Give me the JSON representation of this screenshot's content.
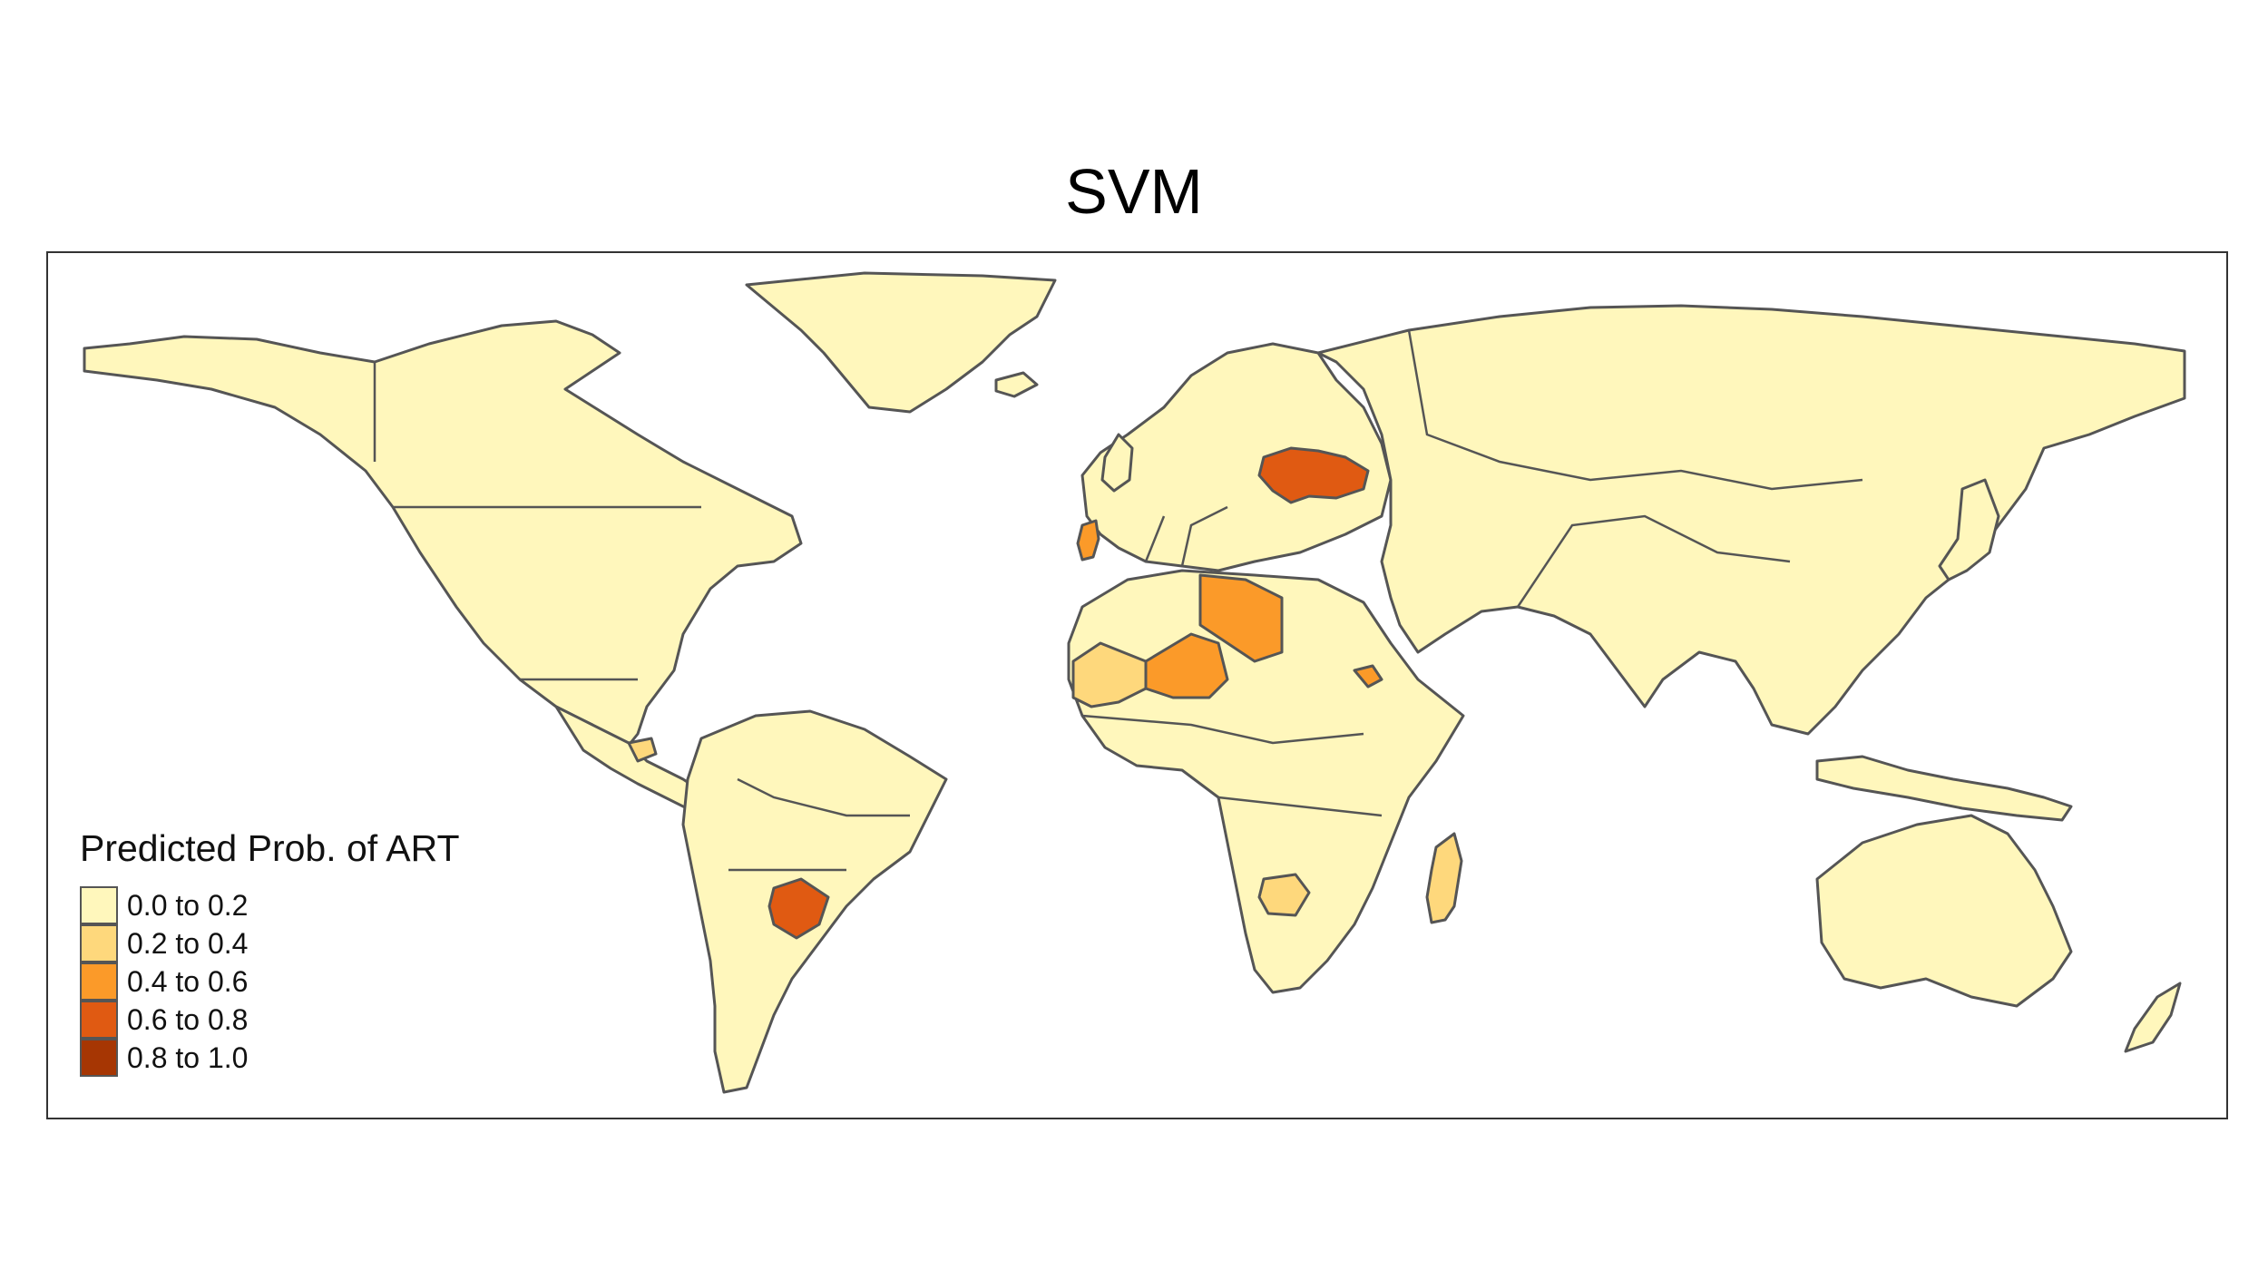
{
  "title": "SVM",
  "legend": {
    "title": "Predicted Prob. of ART",
    "classes": [
      {
        "label": "0.0 to 0.2",
        "color": "#FFF7BC"
      },
      {
        "label": "0.2 to 0.4",
        "color": "#FED87C"
      },
      {
        "label": "0.4 to 0.6",
        "color": "#FB9A29"
      },
      {
        "label": "0.6 to 0.8",
        "color": "#E05A12"
      },
      {
        "label": "0.8 to 1.0",
        "color": "#A63603"
      }
    ]
  },
  "chart_data": {
    "type": "choropleth",
    "title": "SVM",
    "legend_title": "Predicted Prob. of ART",
    "classes": [
      "0.0 to 0.2",
      "0.2 to 0.4",
      "0.4 to 0.6",
      "0.6 to 0.8",
      "0.8 to 1.0"
    ],
    "highlighted_regions": [
      {
        "region": "Ukraine",
        "class": "0.6 to 0.8"
      },
      {
        "region": "Paraguay",
        "class": "0.6 to 0.8"
      },
      {
        "region": "Libya",
        "class": "0.4 to 0.6"
      },
      {
        "region": "Niger",
        "class": "0.4 to 0.6"
      },
      {
        "region": "Portugal",
        "class": "0.4 to 0.6"
      },
      {
        "region": "Eritrea",
        "class": "0.4 to 0.6"
      },
      {
        "region": "Mali",
        "class": "0.2 to 0.4"
      },
      {
        "region": "Guatemala",
        "class": "0.2 to 0.4"
      },
      {
        "region": "Madagascar",
        "class": "0.2 to 0.4"
      },
      {
        "region": "Zimbabwe",
        "class": "0.2 to 0.4"
      }
    ],
    "default_class": "0.0 to 0.2"
  }
}
